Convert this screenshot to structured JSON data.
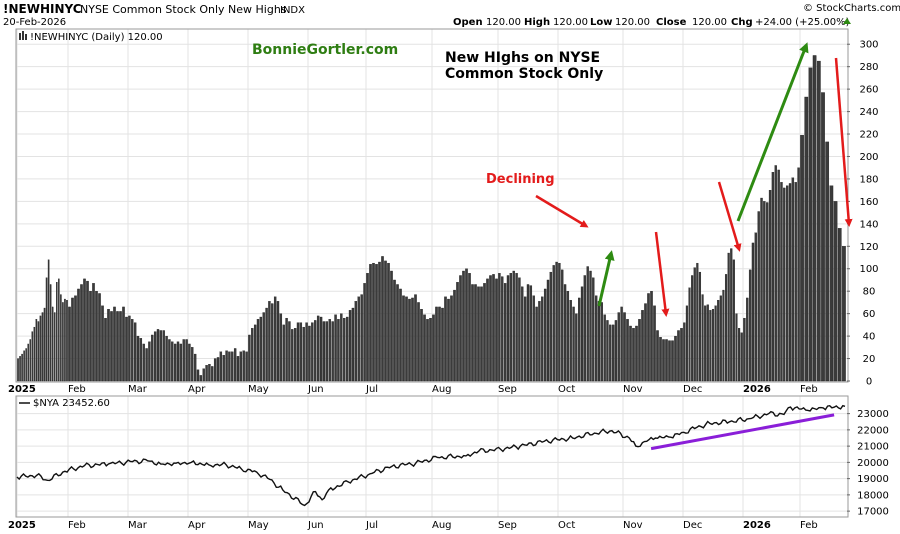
{
  "header": {
    "symbol": "!NEWHINYC",
    "description": "NYSE Common Stock Only New Highs",
    "exchange": "INDX",
    "date": "20-Feb-2026",
    "open_label": "Open",
    "open": "120.00",
    "high_label": "High",
    "high": "120.00",
    "low_label": "Low",
    "low": "120.00",
    "close_label": "Close",
    "close": "120.00",
    "chg_label": "Chg",
    "chg": "+24.00 (+25.00%)",
    "copyright": "© StockCharts.com"
  },
  "annotations": {
    "watermark": "BonnieGortler.com",
    "title_line1": "New HIghs on NYSE",
    "title_line2": "Common Stock Only",
    "declining": "Declining"
  },
  "chart_data": [
    {
      "type": "bar",
      "title": "!NEWHINYC (Daily) 120.00",
      "legend": "!NEWHINYC (Daily) 120.00",
      "ylim": [
        0,
        310
      ],
      "yticks": [
        0,
        20,
        40,
        60,
        80,
        100,
        120,
        140,
        160,
        180,
        200,
        220,
        240,
        260,
        280,
        300
      ],
      "xlabels": [
        "2025",
        "Feb",
        "Mar",
        "Apr",
        "May",
        "Jun",
        "Jul",
        "Aug",
        "Sep",
        "Oct",
        "Nov",
        "Dec",
        "2026",
        "Feb"
      ],
      "monthly_values": [
        [
          20,
          22,
          24,
          27,
          29,
          33,
          37,
          44,
          48,
          55,
          53,
          58,
          61,
          65,
          92,
          108,
          86,
          66,
          61,
          88,
          91,
          77,
          70,
          73,
          72
        ],
        [
          66,
          74,
          76,
          82,
          86,
          91,
          89,
          80,
          87,
          80,
          78,
          67,
          56,
          64,
          62,
          66,
          62,
          62,
          66,
          57
        ],
        [
          58,
          55,
          52,
          40,
          38,
          33,
          29,
          35,
          41,
          44,
          46,
          45,
          45,
          40,
          37,
          35,
          33,
          35,
          33,
          37,
          37
        ],
        [
          33,
          30,
          24,
          10,
          5,
          11,
          14,
          15,
          13,
          20,
          21,
          26,
          23,
          27,
          26,
          26,
          29,
          22,
          26,
          27,
          26
        ],
        [
          41,
          47,
          50,
          55,
          57,
          61,
          65,
          71,
          69,
          75,
          71,
          60,
          50,
          56,
          53,
          46,
          47,
          52,
          52,
          48,
          52
        ],
        [
          49,
          52,
          54,
          58,
          57,
          53,
          53,
          55,
          53,
          59,
          55,
          60,
          56,
          57,
          63,
          65,
          71,
          75,
          77,
          87
        ],
        [
          96,
          104,
          105,
          104,
          106,
          111,
          107,
          105,
          98,
          90,
          86,
          82,
          76,
          75,
          73,
          74,
          77,
          70,
          64,
          59,
          55,
          56
        ],
        [
          59,
          66,
          66,
          65,
          75,
          73,
          76,
          81,
          88,
          94,
          98,
          100,
          96,
          86,
          86,
          84,
          84,
          87,
          91,
          94,
          95,
          91
        ],
        [
          96,
          93,
          87,
          94,
          96,
          98,
          96,
          92,
          84,
          75,
          86,
          85,
          76,
          66,
          71,
          75,
          82,
          90,
          97,
          103,
          106
        ],
        [
          105,
          99,
          86,
          80,
          72,
          66,
          60,
          74,
          84,
          94,
          102,
          98,
          92,
          76,
          71,
          70,
          59,
          54,
          50,
          50,
          54,
          61,
          66
        ],
        [
          61,
          55,
          49,
          47,
          49,
          55,
          63,
          69,
          78,
          80,
          67,
          45,
          39,
          37,
          37,
          36,
          36,
          40,
          45,
          47
        ],
        [
          52,
          67,
          83,
          94,
          101,
          105,
          97,
          77,
          67,
          68,
          63,
          64,
          67,
          72,
          76,
          81,
          95,
          114,
          118,
          108,
          60,
          47,
          43
        ],
        [
          56,
          74,
          99,
          123,
          132,
          151,
          163,
          160,
          159,
          170,
          186,
          192,
          188,
          177,
          172,
          174,
          176,
          181,
          177,
          190
        ],
        [
          219,
          253,
          279,
          290,
          285,
          257,
          213,
          174,
          160,
          136,
          120
        ]
      ],
      "last_value": 120
    },
    {
      "type": "line",
      "title": "$NYA 23452.60",
      "legend": "$NYA 23452.60",
      "ylim": [
        16700,
        23900
      ],
      "yticks": [
        17000,
        18000,
        19000,
        20000,
        21000,
        22000,
        23000
      ],
      "xlabels": [
        "2025",
        "Feb",
        "Mar",
        "Apr",
        "May",
        "Jun",
        "Jul",
        "Aug",
        "Sep",
        "Oct",
        "Nov",
        "Dec",
        "2026",
        "Feb"
      ],
      "x": [
        0,
        9,
        14,
        22,
        31,
        42,
        53,
        60,
        66,
        73,
        80,
        88,
        96,
        103,
        110,
        116,
        122,
        132,
        137,
        140,
        143,
        152,
        162,
        172,
        183,
        193,
        206,
        212,
        222,
        231,
        242,
        255,
        265,
        273,
        281,
        284,
        289,
        293,
        300,
        306,
        312,
        318,
        327,
        337,
        345,
        352,
        355,
        363,
        370,
        380
      ],
      "values": [
        19100,
        19200,
        18900,
        19450,
        19800,
        19900,
        20050,
        20100,
        19900,
        19950,
        20000,
        19850,
        19850,
        19600,
        19400,
        18950,
        18300,
        17350,
        18200,
        17700,
        18300,
        18800,
        19300,
        19750,
        19950,
        20300,
        20400,
        20700,
        20800,
        21000,
        21300,
        21500,
        21800,
        21950,
        21500,
        21000,
        21300,
        21500,
        21550,
        21850,
        22150,
        22400,
        22500,
        22700,
        23000,
        22950,
        23400,
        23200,
        23350,
        23452.6
      ],
      "trendline": [
        [
          291,
          20850
        ],
        [
          375,
          22920
        ]
      ]
    }
  ],
  "colors": {
    "bar": "#3b3b3b",
    "line": "#111111",
    "grid": "#e3e3e3",
    "green_arrow": "#2e8b12",
    "red_arrow": "#e31b1b",
    "trendline": "#8a1ed8",
    "up_triangle": "#2e8b12"
  },
  "icons": {
    "legend_bar": "bar-legend-icon",
    "legend_line": "line-legend-icon",
    "change_up": "triangle-up-icon"
  }
}
